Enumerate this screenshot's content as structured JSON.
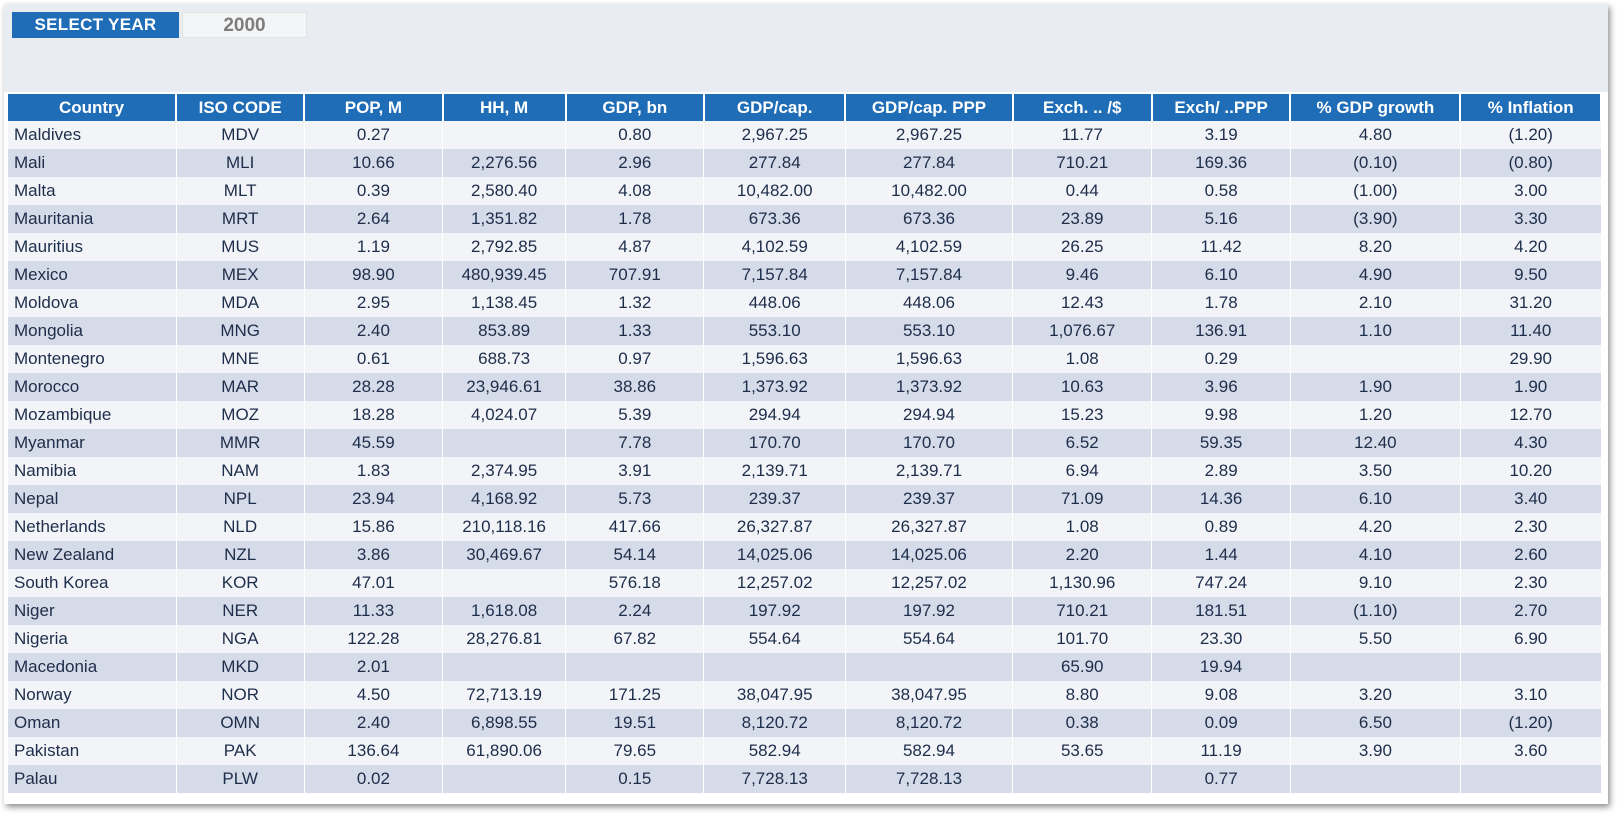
{
  "selector": {
    "label": "SELECT YEAR",
    "value": "2000"
  },
  "columns": [
    "Country",
    "ISO CODE",
    "POP, M",
    "HH, M",
    "GDP, bn",
    "GDP/cap.",
    "GDP/cap. PPP",
    "Exch. .. /$",
    "Exch/ ..PPP",
    "% GDP growth",
    "% Inflation"
  ],
  "rows": [
    [
      "Maldives",
      "MDV",
      "0.27",
      "",
      "0.80",
      "2,967.25",
      "2,967.25",
      "11.77",
      "3.19",
      "4.80",
      "(1.20)"
    ],
    [
      "Mali",
      "MLI",
      "10.66",
      "2,276.56",
      "2.96",
      "277.84",
      "277.84",
      "710.21",
      "169.36",
      "(0.10)",
      "(0.80)"
    ],
    [
      "Malta",
      "MLT",
      "0.39",
      "2,580.40",
      "4.08",
      "10,482.00",
      "10,482.00",
      "0.44",
      "0.58",
      "(1.00)",
      "3.00"
    ],
    [
      "Mauritania",
      "MRT",
      "2.64",
      "1,351.82",
      "1.78",
      "673.36",
      "673.36",
      "23.89",
      "5.16",
      "(3.90)",
      "3.30"
    ],
    [
      "Mauritius",
      "MUS",
      "1.19",
      "2,792.85",
      "4.87",
      "4,102.59",
      "4,102.59",
      "26.25",
      "11.42",
      "8.20",
      "4.20"
    ],
    [
      "Mexico",
      "MEX",
      "98.90",
      "480,939.45",
      "707.91",
      "7,157.84",
      "7,157.84",
      "9.46",
      "6.10",
      "4.90",
      "9.50"
    ],
    [
      "Moldova",
      "MDA",
      "2.95",
      "1,138.45",
      "1.32",
      "448.06",
      "448.06",
      "12.43",
      "1.78",
      "2.10",
      "31.20"
    ],
    [
      "Mongolia",
      "MNG",
      "2.40",
      "853.89",
      "1.33",
      "553.10",
      "553.10",
      "1,076.67",
      "136.91",
      "1.10",
      "11.40"
    ],
    [
      "Montenegro",
      "MNE",
      "0.61",
      "688.73",
      "0.97",
      "1,596.63",
      "1,596.63",
      "1.08",
      "0.29",
      "",
      "29.90"
    ],
    [
      "Morocco",
      "MAR",
      "28.28",
      "23,946.61",
      "38.86",
      "1,373.92",
      "1,373.92",
      "10.63",
      "3.96",
      "1.90",
      "1.90"
    ],
    [
      "Mozambique",
      "MOZ",
      "18.28",
      "4,024.07",
      "5.39",
      "294.94",
      "294.94",
      "15.23",
      "9.98",
      "1.20",
      "12.70"
    ],
    [
      "Myanmar",
      "MMR",
      "45.59",
      "",
      "7.78",
      "170.70",
      "170.70",
      "6.52",
      "59.35",
      "12.40",
      "4.30"
    ],
    [
      "Namibia",
      "NAM",
      "1.83",
      "2,374.95",
      "3.91",
      "2,139.71",
      "2,139.71",
      "6.94",
      "2.89",
      "3.50",
      "10.20"
    ],
    [
      "Nepal",
      "NPL",
      "23.94",
      "4,168.92",
      "5.73",
      "239.37",
      "239.37",
      "71.09",
      "14.36",
      "6.10",
      "3.40"
    ],
    [
      "Netherlands",
      "NLD",
      "15.86",
      "210,118.16",
      "417.66",
      "26,327.87",
      "26,327.87",
      "1.08",
      "0.89",
      "4.20",
      "2.30"
    ],
    [
      "New Zealand",
      "NZL",
      "3.86",
      "30,469.67",
      "54.14",
      "14,025.06",
      "14,025.06",
      "2.20",
      "1.44",
      "4.10",
      "2.60"
    ],
    [
      "South Korea",
      "KOR",
      "47.01",
      "",
      "576.18",
      "12,257.02",
      "12,257.02",
      "1,130.96",
      "747.24",
      "9.10",
      "2.30"
    ],
    [
      "Niger",
      "NER",
      "11.33",
      "1,618.08",
      "2.24",
      "197.92",
      "197.92",
      "710.21",
      "181.51",
      "(1.10)",
      "2.70"
    ],
    [
      "Nigeria",
      "NGA",
      "122.28",
      "28,276.81",
      "67.82",
      "554.64",
      "554.64",
      "101.70",
      "23.30",
      "5.50",
      "6.90"
    ],
    [
      "Macedonia",
      "MKD",
      "2.01",
      "",
      "",
      "",
      "",
      "65.90",
      "19.94",
      "",
      ""
    ],
    [
      "Norway",
      "NOR",
      "4.50",
      "72,713.19",
      "171.25",
      "38,047.95",
      "38,047.95",
      "8.80",
      "9.08",
      "3.20",
      "3.10"
    ],
    [
      "Oman",
      "OMN",
      "2.40",
      "6,898.55",
      "19.51",
      "8,120.72",
      "8,120.72",
      "0.38",
      "0.09",
      "6.50",
      "(1.20)"
    ],
    [
      "Pakistan",
      "PAK",
      "136.64",
      "61,890.06",
      "79.65",
      "582.94",
      "582.94",
      "53.65",
      "11.19",
      "3.90",
      "3.60"
    ],
    [
      "Palau",
      "PLW",
      "0.02",
      "",
      "0.15",
      "7,728.13",
      "7,728.13",
      "",
      "0.77",
      "",
      ""
    ]
  ]
}
